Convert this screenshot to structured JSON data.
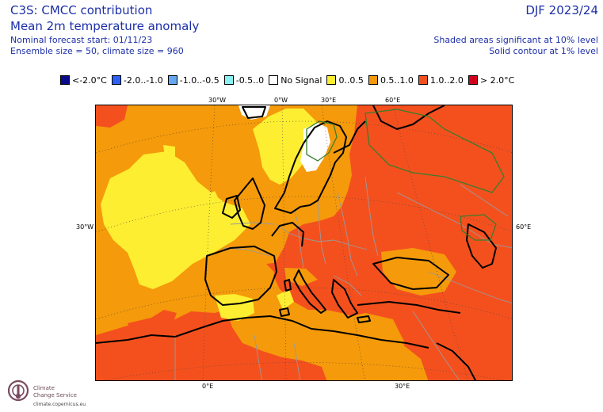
{
  "header": {
    "title": "C3S: CMCC contribution",
    "subtitle": "Mean 2m temperature anomaly",
    "forecast_start": "Nominal forecast start: 01/11/23",
    "ensemble": "Ensemble size = 50, climate size = 960",
    "season": "DJF 2023/24",
    "significance": "Shaded areas significant at 10% level",
    "contour_note": "Solid contour at 1% level"
  },
  "legend": [
    {
      "label": "<-2.0°C",
      "color": "#0a0a8c"
    },
    {
      "label": "-2.0..-1.0",
      "color": "#3060f0"
    },
    {
      "label": "-1.0..-0.5",
      "color": "#64a8f0"
    },
    {
      "label": "-0.5..0",
      "color": "#8cf0f0"
    },
    {
      "label": "No Signal",
      "color": "#ffffff"
    },
    {
      "label": "0..0.5",
      "color": "#fdee32"
    },
    {
      "label": "0.5..1.0",
      "color": "#f59a0a"
    },
    {
      "label": "1.0..2.0",
      "color": "#f4501e"
    },
    {
      "label": "> 2.0°C",
      "color": "#d2001e"
    }
  ],
  "map": {
    "top_ticks": [
      "30°W",
      "0°W",
      "30°E",
      "60°E"
    ],
    "bottom_ticks": [
      "0°E",
      "30°E"
    ],
    "left_tick": "30°W",
    "right_tick": "60°E",
    "colors": {
      "sea": "#f59a0a",
      "weak": "#fdee32",
      "strong": "#f4501e",
      "no_signal": "#ffffff",
      "coast": "#000000",
      "border": "#9a9a9a",
      "contour": "#3a7d2a",
      "grid": "#444444"
    }
  },
  "logo": {
    "line1": "Climate",
    "line2": "Change Service",
    "url": "climate.copernicus.eu"
  }
}
